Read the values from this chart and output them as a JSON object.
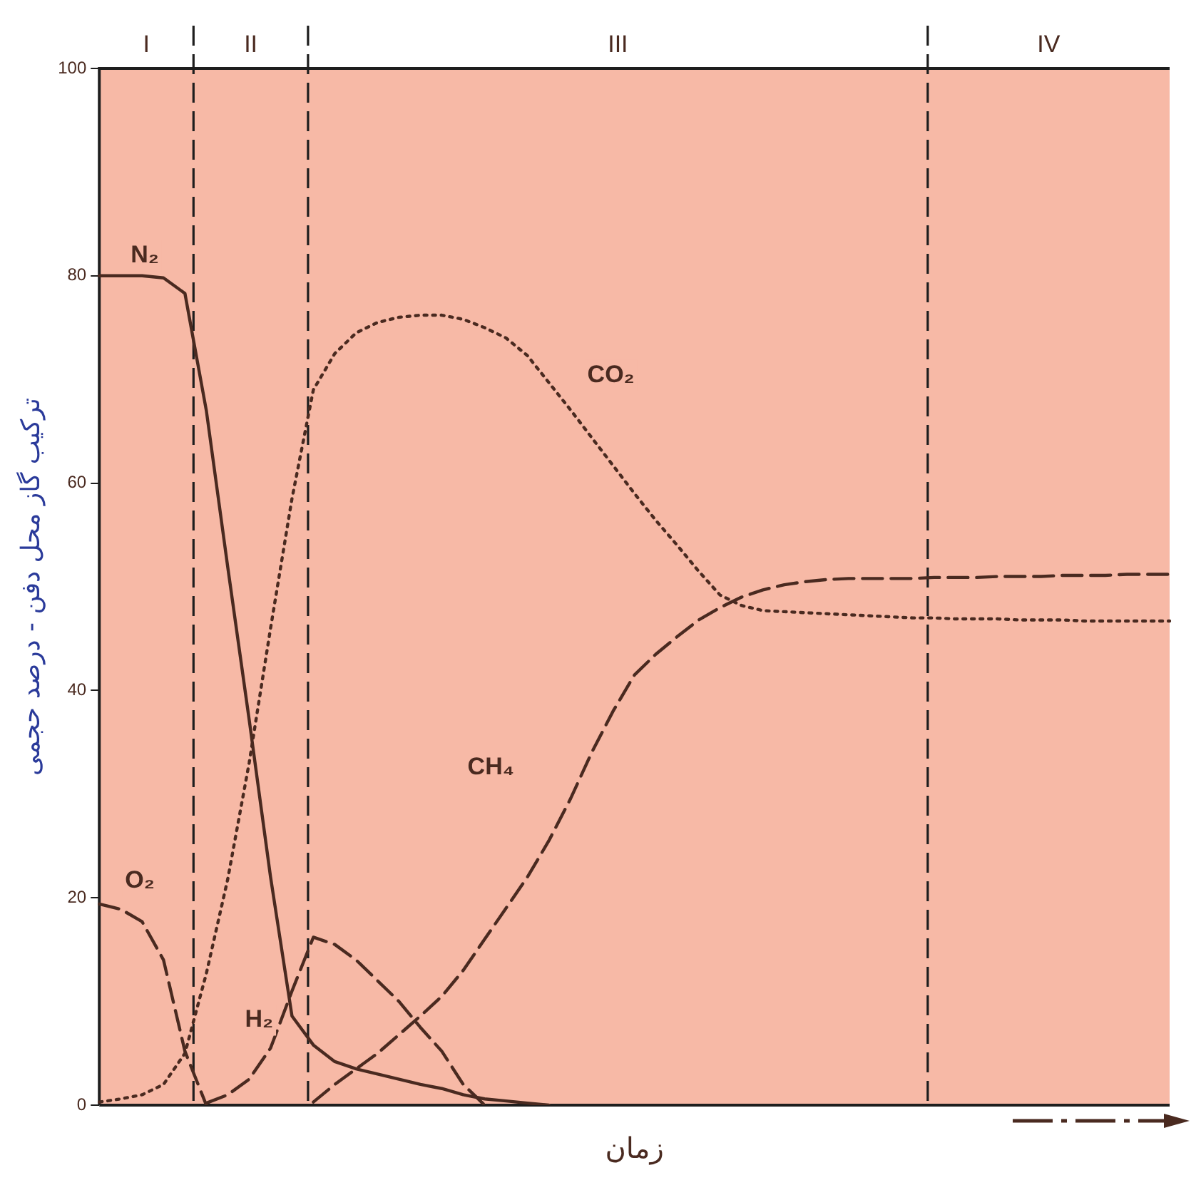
{
  "chart_data": {
    "type": "line",
    "ylabel": "ترکیب گاز محل دفن - درصد حجمی",
    "xlabel": "زمان",
    "categories": [
      null,
      null,
      null,
      null,
      null,
      null,
      null,
      null,
      null,
      null,
      null,
      null,
      null,
      null,
      null,
      null,
      null,
      null,
      null,
      null,
      null,
      null,
      null,
      null,
      null,
      null,
      null,
      null,
      null,
      null,
      null,
      null,
      null,
      null,
      null,
      null,
      null,
      null,
      null,
      null,
      null,
      null,
      null,
      null,
      null,
      null,
      null,
      null,
      null,
      null,
      null
    ],
    "ylim": [
      0,
      100
    ],
    "yticks": [
      0,
      20,
      40,
      60,
      80,
      100
    ],
    "tick_labels": "y",
    "grid": false,
    "legend": false,
    "marker": "none",
    "annotations": [
      "I",
      "II",
      "III",
      "IV"
    ],
    "series": [
      {
        "name": "N₂",
        "color": "#4a2a20",
        "line_style": "solid",
        "values": [
          80,
          80,
          80,
          79.8,
          78.3,
          67,
          51.9,
          37.2,
          22,
          8.6,
          5.8,
          4.2,
          3.5,
          3,
          2.5,
          2,
          1.6,
          1,
          0.6,
          0.4,
          0.2,
          0,
          null,
          null,
          null,
          null,
          null,
          null,
          null,
          null,
          null,
          null,
          null,
          null,
          null,
          null,
          null,
          null,
          null,
          null,
          null,
          null,
          null,
          null,
          null,
          null,
          null,
          null,
          null,
          null,
          null
        ]
      },
      {
        "name": "O₂",
        "color": "#4a2a20",
        "line_style": "dashed",
        "values": [
          19.4,
          18.9,
          17.7,
          14,
          5.2,
          0,
          null,
          null,
          null,
          null,
          null,
          null,
          null,
          null,
          null,
          null,
          null,
          null,
          null,
          null,
          null,
          null,
          null,
          null,
          null,
          null,
          null,
          null,
          null,
          null,
          null,
          null,
          null,
          null,
          null,
          null,
          null,
          null,
          null,
          null,
          null,
          null,
          null,
          null,
          null,
          null,
          null,
          null,
          null,
          null,
          null
        ]
      },
      {
        "name": "H₂",
        "color": "#4a2a20",
        "line_style": "dashed",
        "values": [
          null,
          null,
          null,
          null,
          null,
          0.2,
          1,
          2.5,
          5.5,
          11,
          16.2,
          15.5,
          14,
          12,
          10,
          7.5,
          5.2,
          2,
          0,
          null,
          null,
          null,
          null,
          null,
          null,
          null,
          null,
          null,
          null,
          null,
          null,
          null,
          null,
          null,
          null,
          null,
          null,
          null,
          null,
          null,
          null,
          null,
          null,
          null,
          null,
          null,
          null,
          null,
          null,
          null,
          null
        ]
      },
      {
        "name": "CO₂",
        "color": "#4a2a20",
        "line_style": "dotted",
        "values": [
          0.3,
          0.6,
          1,
          2,
          5,
          12.7,
          21.8,
          33,
          46,
          58.5,
          69,
          72.5,
          74.5,
          75.5,
          76,
          76.2,
          76.2,
          75.8,
          75,
          74,
          72.3,
          69.7,
          67.1,
          64.4,
          61.7,
          59,
          56.4,
          54,
          51.5,
          49.2,
          48.2,
          47.7,
          47.6,
          47.5,
          47.4,
          47.3,
          47.2,
          47.1,
          47,
          47,
          46.9,
          46.9,
          46.9,
          46.8,
          46.8,
          46.8,
          46.7,
          46.7,
          46.7,
          46.7,
          46.7
        ]
      },
      {
        "name": "CH₄",
        "color": "#4a2a20",
        "line_style": "dashed",
        "values": [
          null,
          null,
          null,
          null,
          null,
          null,
          null,
          null,
          null,
          null,
          0.3,
          2,
          3.5,
          5,
          6.8,
          8.6,
          10.5,
          13,
          16,
          19,
          22,
          25.5,
          29.5,
          34,
          38,
          41.5,
          43.5,
          45.2,
          46.8,
          48,
          49,
          49.7,
          50.2,
          50.5,
          50.7,
          50.8,
          50.8,
          50.8,
          50.8,
          50.9,
          50.9,
          50.9,
          51,
          51,
          51,
          51.1,
          51.1,
          51.1,
          51.2,
          51.2,
          51.2
        ]
      }
    ]
  }
}
